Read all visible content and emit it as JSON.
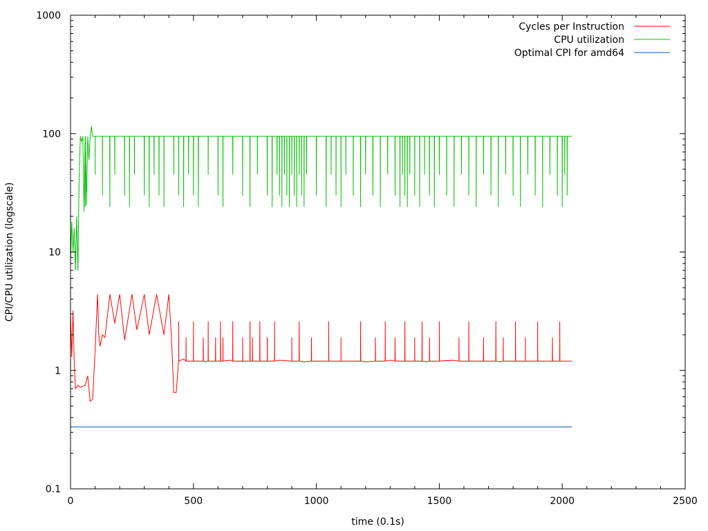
{
  "chart_data": {
    "type": "line",
    "title": "",
    "xlabel": "time (0.1s)",
    "ylabel": "CPI/CPU utilization (logscale)",
    "xlim": [
      0,
      2500
    ],
    "ylim": [
      0.1,
      1000
    ],
    "y_scale": "log",
    "grid": false,
    "legend_position": "top-right",
    "x_ticks": [
      0,
      500,
      1000,
      1500,
      2000,
      2500
    ],
    "x_tick_labels": [
      "0",
      "500",
      "1000",
      "1500",
      "2000",
      "2500"
    ],
    "y_ticks": [
      0.1,
      1,
      10,
      100,
      1000
    ],
    "y_tick_labels": [
      "0.1",
      "1",
      "10",
      "100",
      "1000"
    ],
    "series": [
      {
        "name": "Cycles per Instruction",
        "color": "#ff0000",
        "x": [
          0,
          5,
          10,
          15,
          20,
          30,
          40,
          60,
          70,
          80,
          90,
          100,
          110,
          115,
          120,
          130,
          140,
          160,
          180,
          200,
          220,
          250,
          270,
          300,
          320,
          350,
          380,
          400,
          410,
          420,
          430,
          440,
          460,
          500,
          550,
          600,
          650,
          700,
          750,
          800,
          850,
          900,
          950,
          1000,
          1050,
          1100,
          1150,
          1200,
          1250,
          1300,
          1350,
          1400,
          1450,
          1500,
          1550,
          1600,
          1650,
          1700,
          1750,
          1800,
          1850,
          1900,
          1950,
          2000,
          2020,
          2040
        ],
        "values": [
          3.0,
          1.3,
          3.2,
          1.2,
          0.7,
          0.75,
          0.72,
          0.75,
          0.9,
          0.55,
          0.57,
          1.5,
          4.4,
          2.0,
          1.6,
          2.0,
          1.9,
          4.4,
          2.5,
          4.4,
          1.8,
          4.4,
          2.2,
          4.4,
          2.0,
          4.4,
          2.0,
          4.4,
          2.0,
          0.65,
          0.65,
          1.2,
          1.25,
          1.2,
          1.18,
          1.2,
          1.22,
          1.18,
          1.2,
          1.2,
          1.22,
          1.2,
          1.18,
          1.2,
          1.22,
          1.2,
          1.2,
          1.18,
          1.2,
          1.22,
          1.2,
          1.2,
          1.18,
          1.2,
          1.22,
          1.2,
          1.2,
          1.2,
          1.18,
          1.2,
          1.2,
          1.22,
          1.2,
          1.2,
          1.2,
          1.2
        ],
        "spikes": [
          440,
          470,
          500,
          540,
          560,
          590,
          610,
          620,
          660,
          700,
          730,
          740,
          770,
          800,
          830,
          900,
          930,
          980,
          1050,
          1100,
          1180,
          1240,
          1280,
          1320,
          1360,
          1400,
          1430,
          1460,
          1500,
          1580,
          1620,
          1680,
          1730,
          1760,
          1810,
          1850,
          1900,
          1960,
          1990
        ],
        "spike_value": 2.6
      },
      {
        "name": "CPU utilization",
        "color": "#00c000",
        "x": [
          0,
          5,
          10,
          15,
          20,
          25,
          30,
          35,
          40,
          45,
          50,
          55,
          60,
          65,
          70,
          75,
          80,
          85,
          90,
          100,
          2040
        ],
        "values": [
          8,
          18,
          10,
          16,
          7,
          20,
          7,
          40,
          95,
          85,
          95,
          22,
          95,
          25,
          95,
          60,
          95,
          115,
          95,
          95,
          95
        ],
        "dips": [
          60,
          100,
          130,
          160,
          180,
          220,
          240,
          260,
          300,
          320,
          340,
          360,
          380,
          420,
          440,
          460,
          480,
          500,
          520,
          560,
          600,
          620,
          660,
          700,
          730,
          760,
          800,
          820,
          840,
          850,
          860,
          870,
          880,
          890,
          900,
          910,
          920,
          930,
          940,
          950,
          960,
          1000,
          1040,
          1060,
          1080,
          1100,
          1120,
          1150,
          1180,
          1200,
          1230,
          1260,
          1290,
          1320,
          1340,
          1350,
          1360,
          1370,
          1380,
          1400,
          1420,
          1440,
          1460,
          1480,
          1500,
          1530,
          1560,
          1590,
          1620,
          1650,
          1680,
          1710,
          1740,
          1770,
          1800,
          1830,
          1860,
          1890,
          1920,
          1950,
          1980,
          2000,
          2010,
          2020
        ],
        "dip_low": 24
      },
      {
        "name": "Optimal CPI for amd64",
        "color": "#0060c0",
        "x": [
          0,
          2040
        ],
        "values": [
          0.333,
          0.333
        ]
      }
    ]
  }
}
